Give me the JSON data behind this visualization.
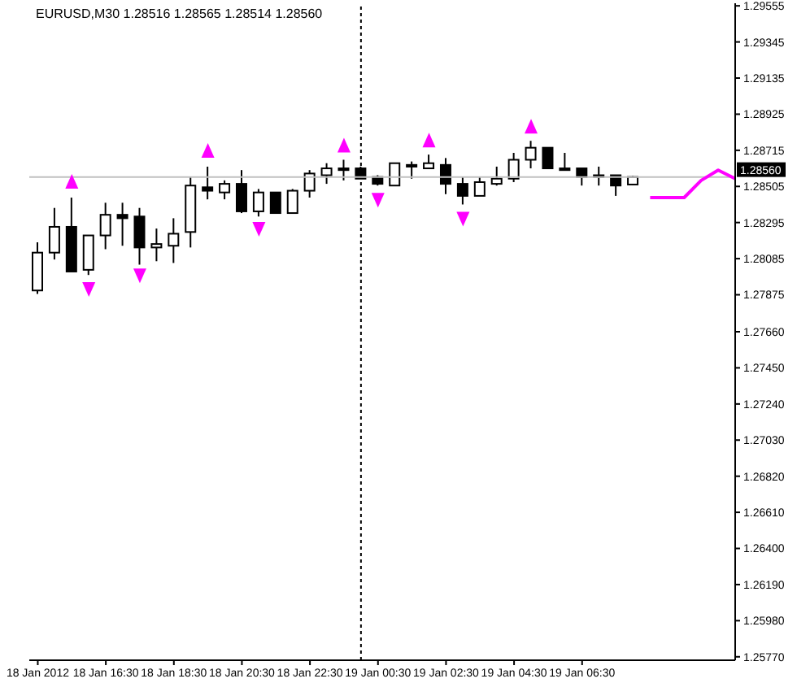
{
  "chart_data": {
    "type": "candlestick",
    "title": "EURUSD,M30  1.28516 1.28565 1.28514 1.28560",
    "color": "#000000",
    "x": [
      "2012-01-18T14:30",
      "2012-01-18T15:00",
      "2012-01-18T15:30",
      "2012-01-18T16:00",
      "2012-01-18T16:30",
      "2012-01-18T17:00",
      "2012-01-18T17:30",
      "2012-01-18T18:00",
      "2012-01-18T18:30",
      "2012-01-18T19:00",
      "2012-01-18T19:30",
      "2012-01-18T20:00",
      "2012-01-18T20:30",
      "2012-01-18T21:00",
      "2012-01-18T21:30",
      "2012-01-18T22:00",
      "2012-01-18T22:30",
      "2012-01-18T23:00",
      "2012-01-18T23:30",
      "2012-01-19T00:00",
      "2012-01-19T00:30",
      "2012-01-19T01:00",
      "2012-01-19T01:30",
      "2012-01-19T02:00",
      "2012-01-19T02:30",
      "2012-01-19T03:00",
      "2012-01-19T03:30",
      "2012-01-19T04:00",
      "2012-01-19T04:30",
      "2012-01-19T05:00",
      "2012-01-19T05:30",
      "2012-01-19T06:00",
      "2012-01-19T06:30",
      "2012-01-19T07:00",
      "2012-01-19T07:30",
      "2012-01-19T08:00"
    ],
    "ohlc": [
      [
        1.279,
        1.2818,
        1.2788,
        1.2812
      ],
      [
        1.2812,
        1.2838,
        1.2808,
        1.2827
      ],
      [
        1.2827,
        1.2844,
        1.2801,
        1.2801
      ],
      [
        1.2802,
        1.2822,
        1.2799,
        1.2822
      ],
      [
        1.2822,
        1.2841,
        1.2814,
        1.2834
      ],
      [
        1.2834,
        1.2841,
        1.2816,
        1.2832
      ],
      [
        1.2833,
        1.2838,
        1.2805,
        1.2815
      ],
      [
        1.2815,
        1.2826,
        1.2807,
        1.2817
      ],
      [
        1.2816,
        1.2832,
        1.2806,
        1.2823
      ],
      [
        1.2824,
        1.2856,
        1.2815,
        1.2851
      ],
      [
        1.285,
        1.2862,
        1.2843,
        1.2848
      ],
      [
        1.2847,
        1.2854,
        1.2843,
        1.2852
      ],
      [
        1.2852,
        1.286,
        1.2835,
        1.2836
      ],
      [
        1.2836,
        1.2849,
        1.2833,
        1.2847
      ],
      [
        1.2847,
        1.2847,
        1.2835,
        1.2835
      ],
      [
        1.2835,
        1.2849,
        1.2835,
        1.2848
      ],
      [
        1.2848,
        1.286,
        1.2844,
        1.2858
      ],
      [
        1.2857,
        1.2864,
        1.2852,
        1.2861
      ],
      [
        1.2861,
        1.2866,
        1.2854,
        1.286
      ],
      [
        1.2861,
        1.2862,
        1.2855,
        1.2855
      ],
      [
        1.2856,
        1.2857,
        1.2851,
        1.2852
      ],
      [
        1.2851,
        1.2864,
        1.2851,
        1.2864
      ],
      [
        1.2863,
        1.2865,
        1.2855,
        1.2862
      ],
      [
        1.2861,
        1.2869,
        1.2861,
        1.2864
      ],
      [
        1.2863,
        1.2867,
        1.2846,
        1.2852
      ],
      [
        1.2852,
        1.2856,
        1.284,
        1.2845
      ],
      [
        1.2845,
        1.2856,
        1.2845,
        1.2853
      ],
      [
        1.2852,
        1.2862,
        1.2851,
        1.2855
      ],
      [
        1.2855,
        1.287,
        1.2853,
        1.2866
      ],
      [
        1.2866,
        1.2877,
        1.2861,
        1.2873
      ],
      [
        1.2873,
        1.2873,
        1.2861,
        1.2861
      ],
      [
        1.2861,
        1.287,
        1.286,
        1.286
      ],
      [
        1.2861,
        1.2861,
        1.2851,
        1.2856
      ],
      [
        1.2857,
        1.2862,
        1.2851,
        1.2856
      ],
      [
        1.2857,
        1.2857,
        1.2845,
        1.2851
      ],
      [
        1.28516,
        1.28565,
        1.28514,
        1.2856
      ]
    ],
    "series": [
      {
        "type": "scatter",
        "marker": "triangle",
        "color": "#ff00ff",
        "x": [
          "2012-01-18T15:30",
          "2012-01-18T16:00",
          "2012-01-18T17:30",
          "2012-01-18T19:30",
          "2012-01-18T21:00",
          "2012-01-18T23:30",
          "2012-01-19T00:30",
          "2012-01-19T02:00",
          "2012-01-19T03:00",
          "2012-01-19T05:00"
        ],
        "values": [
          1.2853,
          1.2791,
          1.2799,
          1.2871,
          1.2826,
          1.2874,
          1.2843,
          1.2877,
          1.2832,
          1.2885
        ]
      },
      {
        "type": "line",
        "color": "#ff00ff",
        "x": [
          "2012-01-19T08:30",
          "2012-01-19T09:00",
          "2012-01-19T09:30",
          "2012-01-19T10:00",
          "2012-01-19T10:30",
          "2012-01-19T11:00"
        ],
        "values": [
          1.2844,
          1.2844,
          1.2844,
          1.2854,
          1.286,
          1.2855
        ]
      }
    ],
    "xlim": [
      "2012-01-18T14:15",
      "2012-01-19T11:00"
    ],
    "xticks": [
      {
        "value": "2012-01-18T14:30",
        "label": "18 Jan 2012"
      },
      {
        "value": "2012-01-18T16:30",
        "label": "18 Jan 16:30"
      },
      {
        "value": "2012-01-18T18:30",
        "label": "18 Jan 18:30"
      },
      {
        "value": "2012-01-18T20:30",
        "label": "18 Jan 20:30"
      },
      {
        "value": "2012-01-18T22:30",
        "label": "18 Jan 22:30"
      },
      {
        "value": "2012-01-19T00:30",
        "label": "19 Jan 00:30"
      },
      {
        "value": "2012-01-19T02:30",
        "label": "19 Jan 02:30"
      },
      {
        "value": "2012-01-19T04:30",
        "label": "19 Jan 04:30"
      },
      {
        "value": "2012-01-19T06:30",
        "label": "19 Jan 06:30"
      }
    ],
    "ylim": [
      1.2575,
      1.2957
    ],
    "yticks": [
      1.29555,
      1.29345,
      1.29135,
      1.28925,
      1.28715,
      1.28505,
      1.28295,
      1.28085,
      1.27875,
      {
        "value": 1.2766,
        "label": "1.27660"
      },
      {
        "value": 1.2745,
        "label": "1.27450"
      },
      {
        "value": 1.2724,
        "label": "1.27240"
      },
      {
        "value": 1.2703,
        "label": "1.27030"
      },
      {
        "value": 1.2682,
        "label": "1.26820"
      },
      {
        "value": 1.2661,
        "label": "1.26610"
      },
      {
        "value": 1.264,
        "label": "1.26400"
      },
      {
        "value": 1.2619,
        "label": "1.26190"
      },
      {
        "value": 1.2598,
        "label": "1.25980"
      },
      {
        "value": 1.2577,
        "label": "1.25770"
      }
    ],
    "ref_lines": [
      {
        "axis": "x",
        "value": "2012-01-19T00:00",
        "color": "#000000",
        "line_style": "dotted"
      },
      {
        "axis": "y",
        "value": 1.2856,
        "label": "1.28560",
        "color": "#c0c0c0",
        "line_style": "solid"
      }
    ],
    "grid": false,
    "legend": false
  }
}
